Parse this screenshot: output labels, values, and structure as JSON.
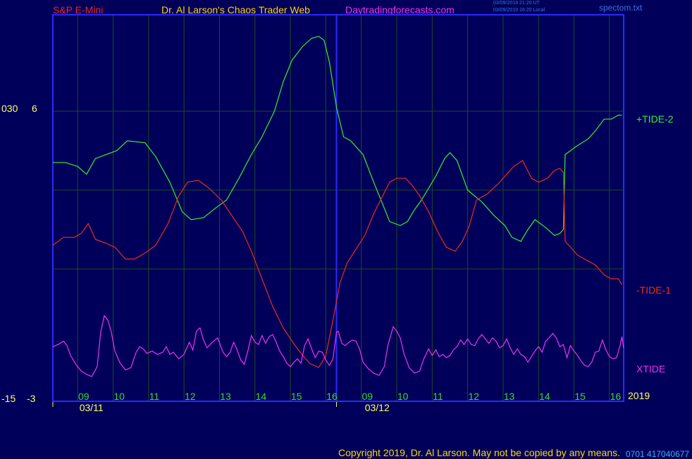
{
  "header": {
    "symbol": "S&P E-Mini",
    "title": "Dr. Al Larson's Chaos Trader Web",
    "site": "Daytradingforecasts.com",
    "stamp_line1": "03/09/2019 21:20 UT",
    "stamp_line2": "03/09/2019 16:20 Local",
    "file": "spectom.txt"
  },
  "footer": {
    "copyright": "Copyright 2019, Dr. Al Larson. May not be copied by any means.",
    "code": "0701 417040677"
  },
  "colors": {
    "background": "#00005a",
    "frame": "#2a2aff",
    "grid": "#1e4a1e",
    "tide_plus": "#33ee33",
    "tide_minus": "#ee2a1a",
    "xtide": "#ee33ee",
    "hour_labels": "#33dd33",
    "axis_text": "#ffff66"
  },
  "chart_data": {
    "type": "line",
    "x_unit": "hour index (0 = 08:00 on 03/11)",
    "x_range": [
      0,
      32.2
    ],
    "left_scale_labels": {
      "upper_a": "030",
      "upper_b": "6",
      "lower_a": "-15",
      "lower_b": "-3"
    },
    "right_labels": {
      "plus_tide": "+TIDE-2",
      "minus_tide": "-TIDE-1",
      "xtide": "XTIDE",
      "year": "2019"
    },
    "hour_ticks": [
      {
        "x": 1.75,
        "label": "09"
      },
      {
        "x": 3.75,
        "label": "10"
      },
      {
        "x": 5.75,
        "label": "11"
      },
      {
        "x": 7.75,
        "label": "12"
      },
      {
        "x": 9.75,
        "label": "13"
      },
      {
        "x": 11.75,
        "label": "14"
      },
      {
        "x": 13.75,
        "label": "15"
      },
      {
        "x": 15.75,
        "label": "16"
      },
      {
        "x": 17.75,
        "label": "09"
      },
      {
        "x": 19.75,
        "label": "10"
      },
      {
        "x": 21.75,
        "label": "11"
      },
      {
        "x": 23.75,
        "label": "12"
      },
      {
        "x": 25.75,
        "label": "13"
      },
      {
        "x": 27.75,
        "label": "14"
      },
      {
        "x": 29.75,
        "label": "15"
      },
      {
        "x": 31.75,
        "label": "16"
      }
    ],
    "gridline_x": [
      1.4,
      3.4,
      5.4,
      7.4,
      9.4,
      11.4,
      13.4,
      15.4,
      17.4,
      19.4,
      21.4,
      23.4,
      25.4,
      27.4,
      29.4,
      31.4
    ],
    "day_labels": [
      {
        "x": 1.5,
        "label": "03/11"
      },
      {
        "x": 17.6,
        "label": "03/12"
      }
    ],
    "day_divider_x": 16,
    "upper_panel": {
      "y_range": [
        -7,
        6
      ],
      "gridlines_y": [
        6,
        2,
        -2
      ]
    },
    "lower_panel": {
      "y_range": [
        -3,
        4
      ]
    },
    "series": [
      {
        "name": "+TIDE-2",
        "panel": "upper",
        "points": [
          [
            0,
            3.4
          ],
          [
            0.7,
            3.4
          ],
          [
            1.4,
            3.2
          ],
          [
            1.9,
            2.8
          ],
          [
            2.4,
            3.6
          ],
          [
            3.0,
            3.8
          ],
          [
            3.6,
            4.0
          ],
          [
            4.2,
            4.5
          ],
          [
            5.2,
            4.4
          ],
          [
            5.8,
            3.7
          ],
          [
            6.6,
            2.4
          ],
          [
            7.3,
            0.9
          ],
          [
            7.8,
            0.5
          ],
          [
            8.5,
            0.6
          ],
          [
            9.2,
            1.1
          ],
          [
            9.8,
            1.5
          ],
          [
            10.5,
            2.6
          ],
          [
            11.2,
            3.8
          ],
          [
            11.8,
            4.7
          ],
          [
            12.5,
            6.0
          ],
          [
            13.0,
            7.5
          ],
          [
            13.5,
            8.6
          ],
          [
            14.1,
            9.3
          ],
          [
            14.6,
            9.7
          ],
          [
            15.0,
            9.8
          ],
          [
            15.3,
            9.6
          ],
          [
            15.6,
            8.5
          ],
          [
            16.0,
            6.2
          ],
          [
            16.4,
            4.7
          ],
          [
            16.8,
            4.5
          ],
          [
            17.5,
            3.8
          ],
          [
            18.1,
            2.4
          ],
          [
            18.6,
            1.3
          ],
          [
            19.0,
            0.4
          ],
          [
            19.6,
            0.2
          ],
          [
            20.0,
            0.4
          ],
          [
            20.4,
            1.0
          ],
          [
            20.8,
            1.5
          ],
          [
            21.6,
            2.7
          ],
          [
            22.1,
            3.6
          ],
          [
            22.4,
            3.9
          ],
          [
            22.8,
            3.5
          ],
          [
            23.4,
            2.0
          ],
          [
            24.2,
            1.4
          ],
          [
            24.9,
            0.7
          ],
          [
            25.5,
            0.2
          ],
          [
            25.9,
            -0.4
          ],
          [
            26.4,
            -0.6
          ],
          [
            26.8,
            0.0
          ],
          [
            27.2,
            0.5
          ],
          [
            27.8,
            0.1
          ],
          [
            28.3,
            -0.3
          ],
          [
            28.6,
            -0.2
          ],
          [
            28.8,
            0.0
          ],
          [
            28.9,
            3.8
          ],
          [
            29.5,
            4.2
          ],
          [
            30.2,
            4.6
          ],
          [
            30.6,
            5.0
          ],
          [
            31.1,
            5.6
          ],
          [
            31.5,
            5.6
          ],
          [
            31.9,
            5.8
          ],
          [
            32.1,
            5.8
          ]
        ]
      },
      {
        "name": "-TIDE-1",
        "panel": "upper",
        "points": [
          [
            0,
            -0.8
          ],
          [
            0.6,
            -0.4
          ],
          [
            1.2,
            -0.4
          ],
          [
            1.6,
            -0.2
          ],
          [
            2.0,
            0.3
          ],
          [
            2.4,
            -0.5
          ],
          [
            3.0,
            -0.7
          ],
          [
            3.5,
            -0.9
          ],
          [
            4.1,
            -1.5
          ],
          [
            4.6,
            -1.5
          ],
          [
            5.2,
            -1.2
          ],
          [
            5.8,
            -0.8
          ],
          [
            6.5,
            0.3
          ],
          [
            7.1,
            1.7
          ],
          [
            7.6,
            2.4
          ],
          [
            8.2,
            2.5
          ],
          [
            8.8,
            2.1
          ],
          [
            9.5,
            1.5
          ],
          [
            10.1,
            0.7
          ],
          [
            10.7,
            -0.1
          ],
          [
            11.2,
            -1.1
          ],
          [
            11.8,
            -2.5
          ],
          [
            12.4,
            -3.9
          ],
          [
            13.0,
            -5.0
          ],
          [
            13.6,
            -5.8
          ],
          [
            14.1,
            -6.4
          ],
          [
            14.5,
            -6.8
          ],
          [
            15.0,
            -7.0
          ],
          [
            15.4,
            -6.4
          ],
          [
            15.8,
            -4.6
          ],
          [
            16.2,
            -2.7
          ],
          [
            16.6,
            -1.7
          ],
          [
            17.1,
            -1.0
          ],
          [
            17.6,
            -0.3
          ],
          [
            18.1,
            0.8
          ],
          [
            18.6,
            1.7
          ],
          [
            19.0,
            2.4
          ],
          [
            19.4,
            2.6
          ],
          [
            19.9,
            2.6
          ],
          [
            20.3,
            2.2
          ],
          [
            20.7,
            1.7
          ],
          [
            21.2,
            0.9
          ],
          [
            21.7,
            -0.1
          ],
          [
            22.2,
            -0.9
          ],
          [
            22.7,
            -1.1
          ],
          [
            23.1,
            -0.6
          ],
          [
            23.5,
            0.2
          ],
          [
            23.9,
            1.5
          ],
          [
            24.5,
            1.8
          ],
          [
            25.1,
            2.3
          ],
          [
            25.5,
            2.7
          ],
          [
            26.0,
            3.2
          ],
          [
            26.5,
            3.5
          ],
          [
            27.0,
            2.6
          ],
          [
            27.4,
            2.4
          ],
          [
            27.9,
            2.6
          ],
          [
            28.3,
            3.0
          ],
          [
            28.6,
            3.1
          ],
          [
            28.8,
            2.9
          ],
          [
            28.9,
            -0.6
          ],
          [
            29.6,
            -1.3
          ],
          [
            30.2,
            -1.6
          ],
          [
            30.6,
            -1.8
          ],
          [
            31.1,
            -2.3
          ],
          [
            31.5,
            -2.5
          ],
          [
            31.9,
            -2.5
          ],
          [
            32.1,
            -2.8
          ]
        ]
      },
      {
        "name": "XTIDE",
        "panel": "lower",
        "points": [
          [
            0,
            1.3
          ],
          [
            0.3,
            1.5
          ],
          [
            0.6,
            1.8
          ],
          [
            0.8,
            1.4
          ],
          [
            1.0,
            0.5
          ],
          [
            1.3,
            -0.3
          ],
          [
            1.6,
            -0.9
          ],
          [
            1.9,
            -1.2
          ],
          [
            2.2,
            -1.4
          ],
          [
            2.5,
            -0.5
          ],
          [
            2.7,
            2.6
          ],
          [
            2.9,
            4.1
          ],
          [
            3.1,
            3.7
          ],
          [
            3.3,
            2.6
          ],
          [
            3.5,
            0.9
          ],
          [
            3.8,
            -0.2
          ],
          [
            4.1,
            -0.8
          ],
          [
            4.4,
            -0.6
          ],
          [
            4.7,
            0.8
          ],
          [
            4.9,
            1.3
          ],
          [
            5.1,
            1.1
          ],
          [
            5.3,
            0.7
          ],
          [
            5.6,
            0.9
          ],
          [
            5.9,
            0.6
          ],
          [
            6.2,
            0.8
          ],
          [
            6.4,
            1.3
          ],
          [
            6.6,
            0.6
          ],
          [
            6.8,
            0.8
          ],
          [
            7.1,
            0.2
          ],
          [
            7.4,
            0.6
          ],
          [
            7.7,
            1.7
          ],
          [
            7.9,
            1.0
          ],
          [
            8.1,
            2.7
          ],
          [
            8.3,
            3.0
          ],
          [
            8.5,
            1.9
          ],
          [
            8.7,
            1.2
          ],
          [
            9.0,
            1.7
          ],
          [
            9.3,
            2.1
          ],
          [
            9.6,
            0.8
          ],
          [
            9.8,
            0.4
          ],
          [
            10.0,
            0.8
          ],
          [
            10.2,
            1.7
          ],
          [
            10.4,
            1.0
          ],
          [
            10.6,
            0.1
          ],
          [
            10.8,
            -0.3
          ],
          [
            11.0,
            0.9
          ],
          [
            11.2,
            2.3
          ],
          [
            11.4,
            1.7
          ],
          [
            11.6,
            1.5
          ],
          [
            11.8,
            2.3
          ],
          [
            12.0,
            1.6
          ],
          [
            12.2,
            2.2
          ],
          [
            12.4,
            2.4
          ],
          [
            12.6,
            1.7
          ],
          [
            12.8,
            0.9
          ],
          [
            13.0,
            0.4
          ],
          [
            13.2,
            -0.2
          ],
          [
            13.4,
            -0.5
          ],
          [
            13.6,
            -0.1
          ],
          [
            13.8,
            0.2
          ],
          [
            14.0,
            -0.2
          ],
          [
            14.2,
            1.4
          ],
          [
            14.4,
            2.0
          ],
          [
            14.6,
            1.1
          ],
          [
            14.8,
            0.3
          ],
          [
            15.0,
            0.9
          ],
          [
            15.2,
            0.8
          ],
          [
            15.4,
            0.1
          ],
          [
            15.6,
            -0.4
          ],
          [
            15.8,
            0.2
          ],
          [
            16.0,
            2.6
          ],
          [
            16.1,
            2.7
          ],
          [
            16.3,
            1.6
          ],
          [
            16.5,
            1.4
          ],
          [
            16.7,
            1.7
          ],
          [
            16.9,
            1.9
          ],
          [
            17.1,
            1.8
          ],
          [
            17.3,
            1.1
          ],
          [
            17.5,
            -0.1
          ],
          [
            17.8,
            -0.7
          ],
          [
            18.1,
            -1.1
          ],
          [
            18.4,
            -1.3
          ],
          [
            18.7,
            -0.5
          ],
          [
            18.9,
            1.4
          ],
          [
            19.2,
            3.1
          ],
          [
            19.4,
            2.7
          ],
          [
            19.6,
            2.1
          ],
          [
            19.8,
            0.7
          ],
          [
            20.1,
            -0.6
          ],
          [
            20.4,
            -1.1
          ],
          [
            20.7,
            -0.9
          ],
          [
            20.9,
            0.1
          ],
          [
            21.2,
            1.1
          ],
          [
            21.4,
            0.5
          ],
          [
            21.6,
            1.0
          ],
          [
            21.8,
            0.4
          ],
          [
            22.0,
            0.6
          ],
          [
            22.2,
            0.3
          ],
          [
            22.4,
            0.5
          ],
          [
            22.6,
            1.0
          ],
          [
            22.8,
            1.3
          ],
          [
            23.0,
            1.9
          ],
          [
            23.2,
            1.5
          ],
          [
            23.4,
            2.0
          ],
          [
            23.6,
            1.5
          ],
          [
            23.8,
            1.4
          ],
          [
            24.0,
            2.0
          ],
          [
            24.2,
            2.4
          ],
          [
            24.4,
            2.0
          ],
          [
            24.6,
            1.6
          ],
          [
            24.8,
            2.1
          ],
          [
            25.0,
            1.8
          ],
          [
            25.2,
            1.2
          ],
          [
            25.4,
            1.4
          ],
          [
            25.6,
            2.0
          ],
          [
            25.8,
            1.2
          ],
          [
            26.0,
            0.6
          ],
          [
            26.2,
            1.1
          ],
          [
            26.4,
            0.6
          ],
          [
            26.6,
            0.4
          ],
          [
            26.8,
            -0.1
          ],
          [
            27.0,
            0.4
          ],
          [
            27.2,
            0.9
          ],
          [
            27.4,
            1.3
          ],
          [
            27.6,
            0.8
          ],
          [
            27.8,
            1.8
          ],
          [
            28.0,
            2.1
          ],
          [
            28.2,
            2.5
          ],
          [
            28.4,
            2.1
          ],
          [
            28.6,
            1.3
          ],
          [
            28.8,
            1.5
          ],
          [
            29.0,
            0.3
          ],
          [
            29.2,
            1.4
          ],
          [
            29.4,
            0.9
          ],
          [
            29.6,
            0.5
          ],
          [
            29.8,
            0.0
          ],
          [
            30.0,
            -0.4
          ],
          [
            30.2,
            -0.5
          ],
          [
            30.4,
            -0.1
          ],
          [
            30.6,
            0.8
          ],
          [
            30.8,
            0.9
          ],
          [
            31.0,
            1.9
          ],
          [
            31.2,
            1.0
          ],
          [
            31.4,
            0.4
          ],
          [
            31.6,
            0.2
          ],
          [
            31.8,
            0.3
          ],
          [
            32.0,
            1.4
          ],
          [
            32.1,
            2.2
          ],
          [
            32.2,
            1.2
          ]
        ]
      }
    ]
  }
}
